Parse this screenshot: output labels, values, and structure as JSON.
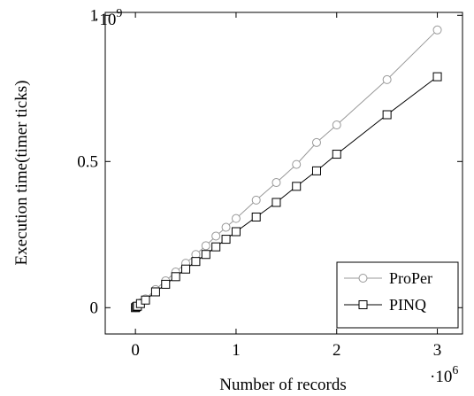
{
  "chart_data": {
    "type": "line",
    "xlabel": "Number of records",
    "ylabel": "Execution time(timer ticks)",
    "x_multiplier_label": "·10",
    "x_multiplier_exp": "6",
    "y_multiplier_label": "·10",
    "y_multiplier_exp": "9",
    "xlim": [
      -0.3,
      3.25
    ],
    "ylim": [
      -0.09,
      1.01
    ],
    "x_ticks": [
      {
        "value": 0,
        "label": "0"
      },
      {
        "value": 1,
        "label": "1"
      },
      {
        "value": 2,
        "label": "2"
      },
      {
        "value": 3,
        "label": "3"
      }
    ],
    "y_ticks": [
      {
        "value": 0,
        "label": "0"
      },
      {
        "value": 0.5,
        "label": "0.5"
      },
      {
        "value": 1,
        "label": "1"
      }
    ],
    "grid": false,
    "legend_position": "bottom-right",
    "series": [
      {
        "name": "ProPer",
        "marker": "circle",
        "color": "#999999",
        "x": [
          0,
          0.01,
          0.02,
          0.05,
          0.1,
          0.2,
          0.3,
          0.4,
          0.5,
          0.6,
          0.7,
          0.8,
          0.9,
          1.0,
          1.2,
          1.4,
          1.6,
          1.8,
          2.0,
          2.5,
          3.0
        ],
        "y": [
          0.0,
          0.003,
          0.006,
          0.016,
          0.03,
          0.062,
          0.092,
          0.122,
          0.152,
          0.182,
          0.212,
          0.245,
          0.275,
          0.305,
          0.368,
          0.428,
          0.49,
          0.565,
          0.625,
          0.78,
          0.95
        ]
      },
      {
        "name": "PINQ",
        "marker": "square",
        "color": "#000000",
        "x": [
          0,
          0.01,
          0.02,
          0.05,
          0.1,
          0.2,
          0.3,
          0.4,
          0.5,
          0.6,
          0.7,
          0.8,
          0.9,
          1.0,
          1.2,
          1.4,
          1.6,
          1.8,
          2.0,
          2.5,
          3.0
        ],
        "y": [
          0.0,
          0.003,
          0.005,
          0.014,
          0.026,
          0.054,
          0.08,
          0.106,
          0.132,
          0.158,
          0.182,
          0.208,
          0.234,
          0.26,
          0.31,
          0.36,
          0.415,
          0.468,
          0.525,
          0.66,
          0.79
        ]
      }
    ]
  }
}
